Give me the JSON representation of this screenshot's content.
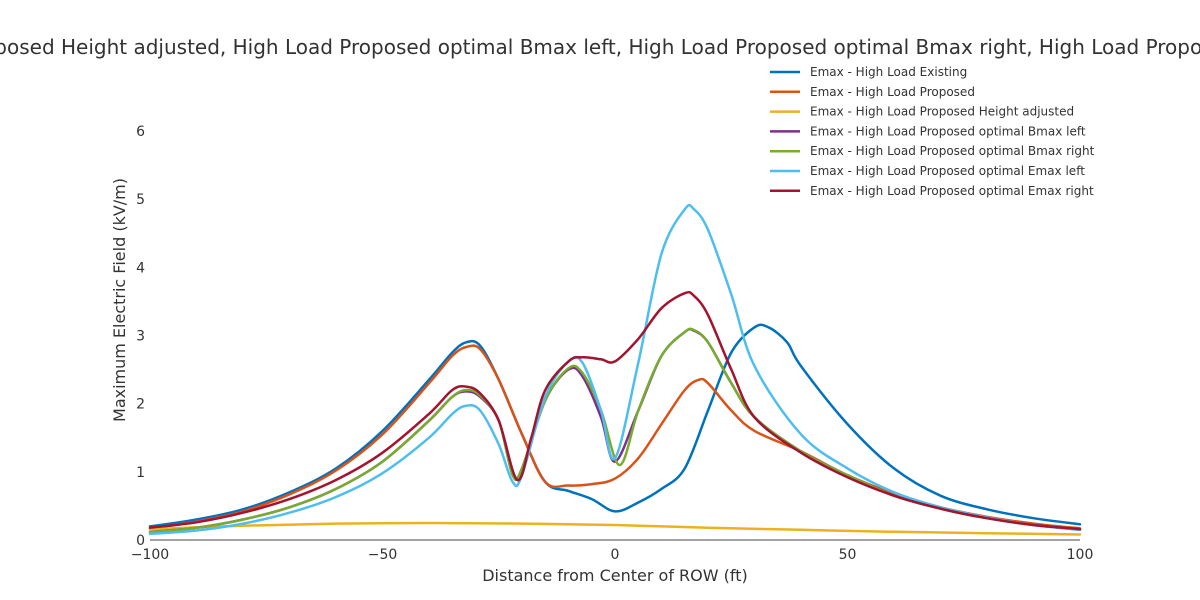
{
  "chart_data": {
    "type": "line",
    "title": "Emax - High Load Existing, High Load Proposed, High Load Proposed Height adjusted, High Load Proposed optimal Bmax left, High Load Proposed optimal Bmax right, High Load Proposed optimal Emax left, High Load Proposed optimal Emax right",
    "xlabel": "Distance from Center of ROW (ft)",
    "ylabel": "Maximum Electric Field (kV/m)",
    "xlim": [
      -100,
      100
    ],
    "ylim": [
      0,
      6.6
    ],
    "xticks": [
      -100,
      -50,
      0,
      50,
      100
    ],
    "xtick_labels": [
      "−100",
      "−50",
      "0",
      "50",
      "100"
    ],
    "yticks": [
      0,
      1,
      2,
      3,
      4,
      5,
      6
    ],
    "grid": false,
    "legend_position": "top-right",
    "series": [
      {
        "name": "Emax - High Load Existing",
        "color": "#0072bd",
        "points": [
          [
            -100,
            0.2
          ],
          [
            -90,
            0.3
          ],
          [
            -80,
            0.45
          ],
          [
            -70,
            0.7
          ],
          [
            -60,
            1.05
          ],
          [
            -50,
            1.6
          ],
          [
            -40,
            2.35
          ],
          [
            -35,
            2.75
          ],
          [
            -32,
            2.9
          ],
          [
            -29,
            2.85
          ],
          [
            -25,
            2.35
          ],
          [
            -20,
            1.55
          ],
          [
            -15,
            0.85
          ],
          [
            -10,
            0.72
          ],
          [
            -5,
            0.6
          ],
          [
            0,
            0.42
          ],
          [
            5,
            0.55
          ],
          [
            10,
            0.75
          ],
          [
            15,
            1.05
          ],
          [
            20,
            1.9
          ],
          [
            25,
            2.75
          ],
          [
            30,
            3.12
          ],
          [
            33,
            3.12
          ],
          [
            37,
            2.9
          ],
          [
            40,
            2.55
          ],
          [
            50,
            1.7
          ],
          [
            60,
            1.05
          ],
          [
            70,
            0.65
          ],
          [
            80,
            0.45
          ],
          [
            90,
            0.32
          ],
          [
            100,
            0.23
          ]
        ]
      },
      {
        "name": "Emax - High Load Proposed",
        "color": "#d95319",
        "points": [
          [
            -100,
            0.17
          ],
          [
            -90,
            0.27
          ],
          [
            -80,
            0.42
          ],
          [
            -70,
            0.67
          ],
          [
            -60,
            1.02
          ],
          [
            -50,
            1.55
          ],
          [
            -40,
            2.3
          ],
          [
            -35,
            2.7
          ],
          [
            -32,
            2.83
          ],
          [
            -29,
            2.8
          ],
          [
            -25,
            2.35
          ],
          [
            -20,
            1.55
          ],
          [
            -15,
            0.85
          ],
          [
            -10,
            0.8
          ],
          [
            -5,
            0.82
          ],
          [
            0,
            0.9
          ],
          [
            5,
            1.2
          ],
          [
            10,
            1.7
          ],
          [
            15,
            2.2
          ],
          [
            18,
            2.35
          ],
          [
            20,
            2.3
          ],
          [
            25,
            1.9
          ],
          [
            30,
            1.6
          ],
          [
            40,
            1.3
          ],
          [
            50,
            0.95
          ],
          [
            60,
            0.68
          ],
          [
            70,
            0.48
          ],
          [
            80,
            0.34
          ],
          [
            90,
            0.24
          ],
          [
            100,
            0.17
          ]
        ]
      },
      {
        "name": "Emax - High Load Proposed Height adjusted",
        "color": "#edb120",
        "points": [
          [
            -100,
            0.16
          ],
          [
            -80,
            0.21
          ],
          [
            -60,
            0.24
          ],
          [
            -40,
            0.25
          ],
          [
            -20,
            0.24
          ],
          [
            0,
            0.22
          ],
          [
            20,
            0.18
          ],
          [
            40,
            0.15
          ],
          [
            60,
            0.12
          ],
          [
            80,
            0.1
          ],
          [
            100,
            0.08
          ]
        ]
      },
      {
        "name": "Emax - High Load Proposed optimal Bmax left",
        "color": "#7e2f8e",
        "points": [
          [
            -100,
            0.12
          ],
          [
            -90,
            0.18
          ],
          [
            -80,
            0.3
          ],
          [
            -70,
            0.48
          ],
          [
            -60,
            0.75
          ],
          [
            -50,
            1.15
          ],
          [
            -40,
            1.75
          ],
          [
            -35,
            2.1
          ],
          [
            -32,
            2.18
          ],
          [
            -29,
            2.1
          ],
          [
            -25,
            1.75
          ],
          [
            -22,
            0.95
          ],
          [
            -20,
            1.05
          ],
          [
            -15,
            2.05
          ],
          [
            -10,
            2.5
          ],
          [
            -7,
            2.4
          ],
          [
            -3,
            1.8
          ],
          [
            0,
            1.15
          ],
          [
            5,
            1.9
          ],
          [
            10,
            2.7
          ],
          [
            15,
            3.05
          ],
          [
            17,
            3.07
          ],
          [
            20,
            2.9
          ],
          [
            25,
            2.3
          ],
          [
            30,
            1.8
          ],
          [
            40,
            1.3
          ],
          [
            50,
            0.95
          ],
          [
            60,
            0.65
          ],
          [
            70,
            0.46
          ],
          [
            80,
            0.32
          ],
          [
            90,
            0.22
          ],
          [
            100,
            0.15
          ]
        ]
      },
      {
        "name": "Emax - High Load Proposed optimal Bmax right",
        "color": "#77ac30",
        "points": [
          [
            -100,
            0.12
          ],
          [
            -90,
            0.18
          ],
          [
            -80,
            0.3
          ],
          [
            -70,
            0.48
          ],
          [
            -60,
            0.75
          ],
          [
            -50,
            1.15
          ],
          [
            -40,
            1.75
          ],
          [
            -35,
            2.1
          ],
          [
            -32,
            2.2
          ],
          [
            -29,
            2.12
          ],
          [
            -25,
            1.75
          ],
          [
            -22,
            0.95
          ],
          [
            -20,
            1.05
          ],
          [
            -15,
            2.05
          ],
          [
            -10,
            2.52
          ],
          [
            -7,
            2.45
          ],
          [
            -3,
            1.9
          ],
          [
            1,
            1.1
          ],
          [
            5,
            1.9
          ],
          [
            10,
            2.7
          ],
          [
            15,
            3.05
          ],
          [
            17,
            3.08
          ],
          [
            20,
            2.9
          ],
          [
            25,
            2.3
          ],
          [
            30,
            1.8
          ],
          [
            40,
            1.3
          ],
          [
            50,
            0.95
          ],
          [
            60,
            0.65
          ],
          [
            70,
            0.46
          ],
          [
            80,
            0.32
          ],
          [
            90,
            0.22
          ],
          [
            100,
            0.16
          ]
        ]
      },
      {
        "name": "Emax - High Load Proposed optimal Emax left",
        "color": "#4dbeee",
        "points": [
          [
            -100,
            0.09
          ],
          [
            -90,
            0.14
          ],
          [
            -80,
            0.24
          ],
          [
            -70,
            0.4
          ],
          [
            -60,
            0.63
          ],
          [
            -50,
            0.98
          ],
          [
            -40,
            1.5
          ],
          [
            -35,
            1.85
          ],
          [
            -32,
            1.97
          ],
          [
            -29,
            1.9
          ],
          [
            -25,
            1.4
          ],
          [
            -22,
            0.85
          ],
          [
            -20,
            0.95
          ],
          [
            -15,
            2.1
          ],
          [
            -10,
            2.62
          ],
          [
            -7,
            2.6
          ],
          [
            -3,
            1.9
          ],
          [
            0,
            1.2
          ],
          [
            5,
            2.6
          ],
          [
            10,
            4.2
          ],
          [
            15,
            4.85
          ],
          [
            17,
            4.85
          ],
          [
            20,
            4.55
          ],
          [
            25,
            3.6
          ],
          [
            30,
            2.55
          ],
          [
            40,
            1.55
          ],
          [
            50,
            1.05
          ],
          [
            60,
            0.7
          ],
          [
            70,
            0.48
          ],
          [
            80,
            0.33
          ],
          [
            90,
            0.22
          ],
          [
            100,
            0.15
          ]
        ]
      },
      {
        "name": "Emax - High Load Proposed optimal Emax right",
        "color": "#a2142f",
        "points": [
          [
            -100,
            0.18
          ],
          [
            -90,
            0.26
          ],
          [
            -80,
            0.4
          ],
          [
            -70,
            0.6
          ],
          [
            -60,
            0.88
          ],
          [
            -50,
            1.28
          ],
          [
            -40,
            1.85
          ],
          [
            -35,
            2.2
          ],
          [
            -32,
            2.25
          ],
          [
            -29,
            2.15
          ],
          [
            -25,
            1.75
          ],
          [
            -21,
            0.88
          ],
          [
            -18,
            1.5
          ],
          [
            -15,
            2.2
          ],
          [
            -10,
            2.62
          ],
          [
            -7,
            2.68
          ],
          [
            -3,
            2.65
          ],
          [
            0,
            2.62
          ],
          [
            5,
            2.95
          ],
          [
            10,
            3.4
          ],
          [
            15,
            3.62
          ],
          [
            17,
            3.58
          ],
          [
            20,
            3.3
          ],
          [
            25,
            2.5
          ],
          [
            30,
            1.8
          ],
          [
            40,
            1.28
          ],
          [
            50,
            0.92
          ],
          [
            60,
            0.65
          ],
          [
            70,
            0.46
          ],
          [
            80,
            0.32
          ],
          [
            90,
            0.22
          ],
          [
            100,
            0.16
          ]
        ]
      }
    ]
  }
}
